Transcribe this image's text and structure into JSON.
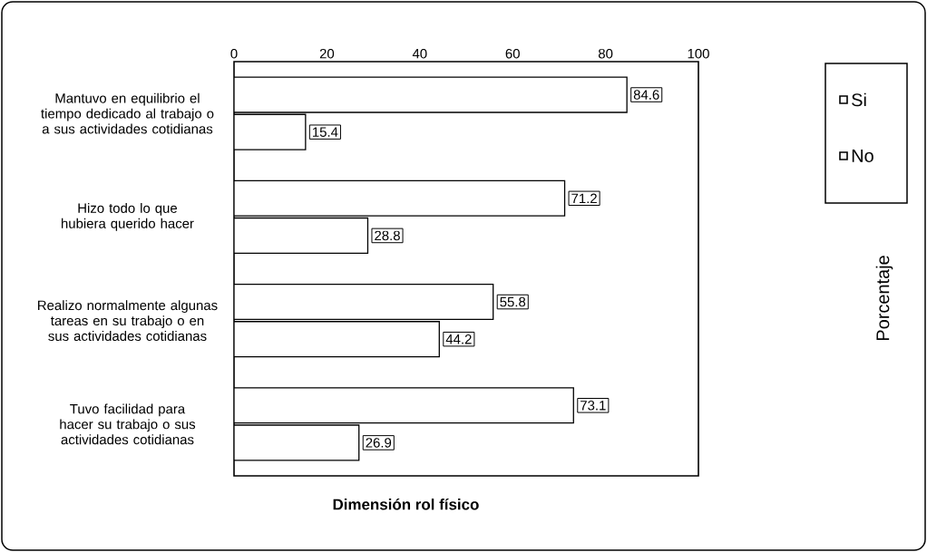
{
  "chart_data": {
    "type": "bar",
    "orientation": "horizontal",
    "title": "Dimensión rol físico",
    "annotations": [
      "Porcentaje"
    ],
    "categories": [
      "Mantuvo en equilibrio el tiempo dedicado al trabajo o a sus actividades cotidianas",
      "Hizo todo lo que hubiera querido hacer",
      "Realizo normalmente algunas tareas en su trabajo o en sus actividades cotidianas",
      "Tuvo facilidad para hacer su trabajo o sus actividades cotidianas"
    ],
    "series": [
      {
        "name": "Si",
        "color": "#ffffff",
        "values": [
          84.6,
          71.2,
          55.8,
          73.1
        ]
      },
      {
        "name": "No",
        "color": "#ffffff",
        "values": [
          15.4,
          28.8,
          44.2,
          26.9
        ]
      }
    ],
    "xlim": [
      0,
      100
    ],
    "xticks": [
      0,
      20,
      40,
      60,
      80,
      100
    ],
    "data_labels": true,
    "legend": "top right",
    "grid": false
  }
}
